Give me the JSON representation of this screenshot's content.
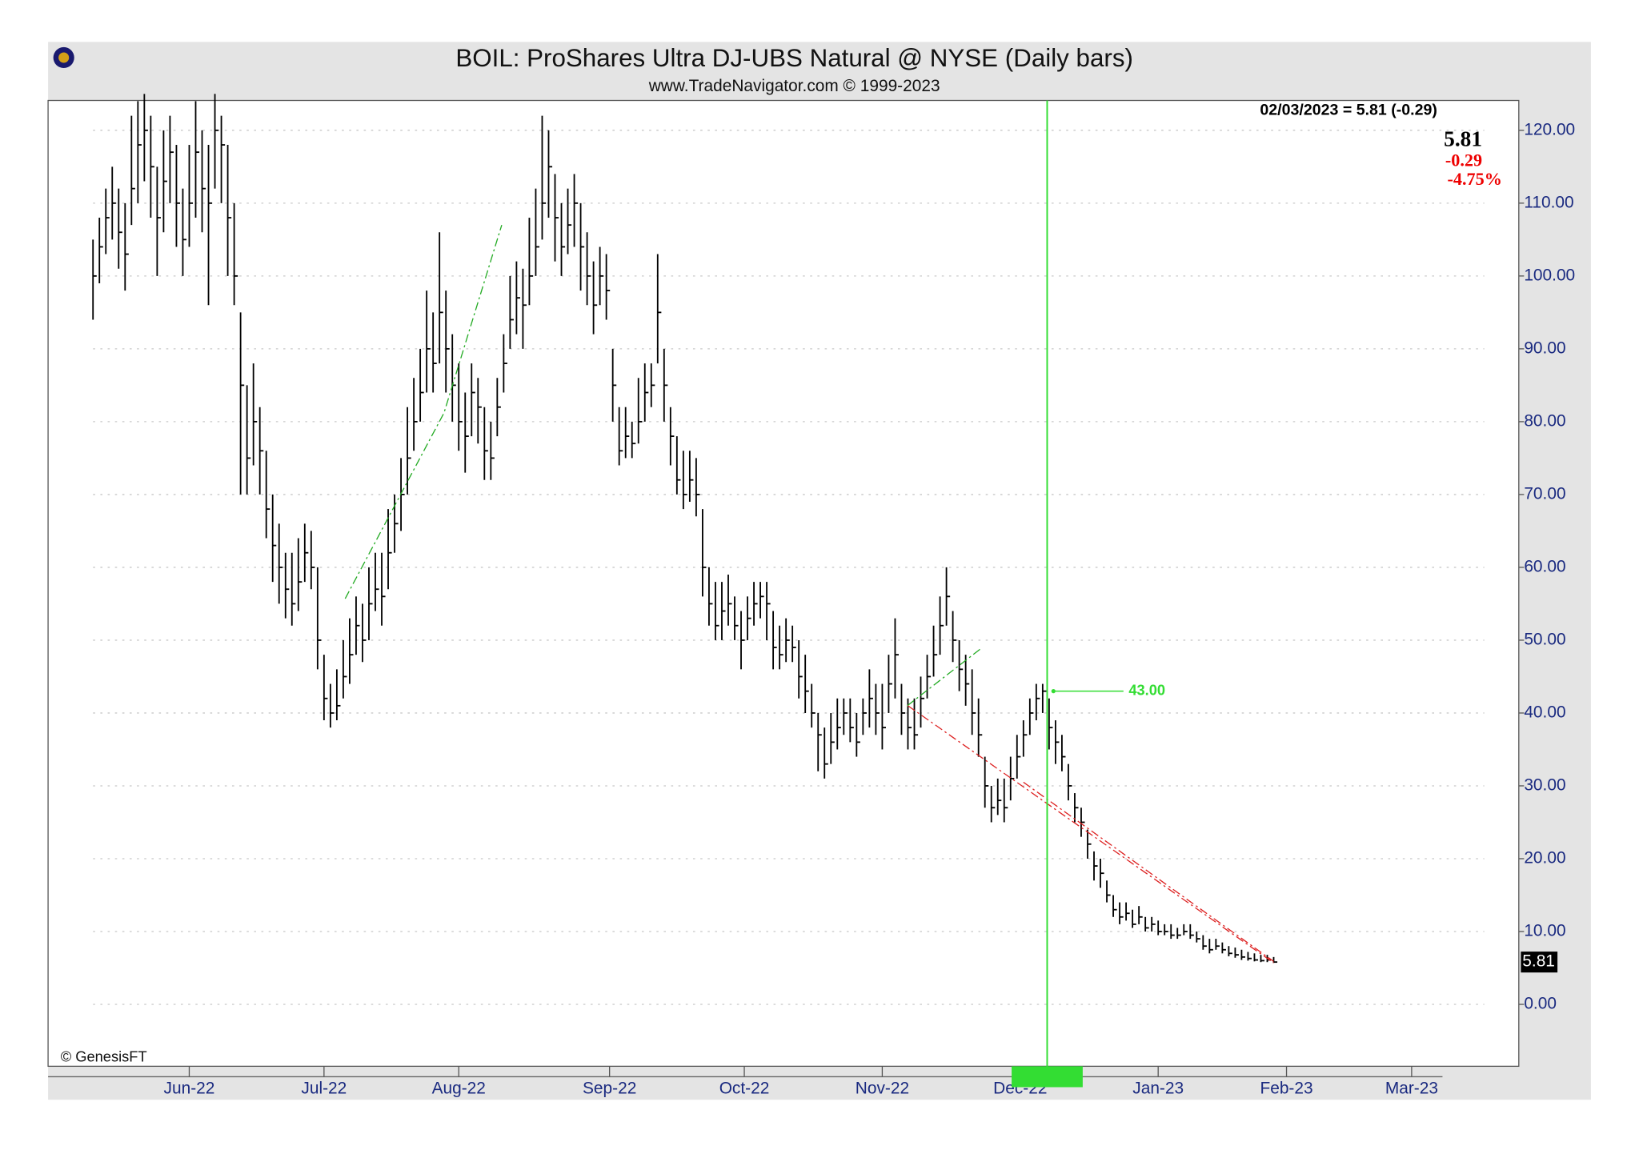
{
  "chart_data": {
    "type": "ohlc",
    "title": "BOIL:  ProShares Ultra DJ-UBS Natural @ NYSE  (Daily bars)",
    "subtitle": "www.TradeNavigator.com © 1999-2023",
    "quote_header": "02/03/2023 = 5.81 (-0.29)",
    "quote": {
      "last": "5.81",
      "change": "-0.29",
      "change_pct": "-4.75%"
    },
    "last_price_tag": 5.81,
    "copyright": "© GenesisFT",
    "color": "#000000",
    "high": [
      105,
      108,
      112,
      115,
      112,
      110,
      122,
      124,
      125,
      122,
      115,
      120,
      122,
      118,
      112,
      118,
      124,
      120,
      118,
      125,
      122,
      118,
      110,
      95,
      85,
      88,
      82,
      76,
      70,
      66,
      62,
      62,
      64,
      66,
      65,
      60,
      48,
      44,
      46,
      50,
      53,
      56,
      55,
      60,
      62,
      62,
      68,
      70,
      75,
      82,
      86,
      90,
      98,
      95,
      106,
      98,
      92,
      88,
      84,
      88,
      86,
      82,
      80,
      86,
      92,
      100,
      102,
      101,
      108,
      112,
      122,
      120,
      114,
      110,
      112,
      114,
      110,
      106,
      102,
      104,
      103,
      90,
      82,
      82,
      80,
      86,
      88,
      88,
      103,
      90,
      82,
      78,
      76,
      76,
      75,
      68,
      60,
      58,
      58,
      59,
      56,
      54,
      56,
      58,
      58,
      58,
      54,
      52,
      53,
      52,
      50,
      48,
      44,
      40,
      38,
      40,
      42,
      42,
      42,
      40,
      42,
      46,
      44,
      44,
      48,
      53,
      44,
      42,
      42,
      45,
      48,
      52,
      56,
      60,
      54,
      50,
      48,
      46,
      42,
      34,
      30,
      31,
      31,
      34,
      37,
      39,
      42,
      44,
      44,
      42,
      39,
      37,
      33,
      29,
      27,
      24,
      21,
      20,
      17,
      15,
      14,
      14,
      13,
      13.5,
      12,
      12,
      11.5,
      11,
      11,
      10.5,
      11,
      11,
      10,
      9.5,
      9,
      9,
      8.5,
      8,
      7.8,
      7.5,
      7.2,
      7,
      6.8,
      6.8,
      6.5
    ],
    "low": [
      94,
      99,
      103,
      105,
      101,
      98,
      107,
      110,
      113,
      108,
      100,
      106,
      110,
      104,
      100,
      104,
      108,
      106,
      96,
      112,
      110,
      100,
      96,
      70,
      70,
      74,
      70,
      64,
      58,
      55,
      53,
      52,
      54,
      58,
      57,
      46,
      39,
      38,
      39,
      42,
      44,
      48,
      47,
      50,
      54,
      52,
      57,
      62,
      65,
      70,
      76,
      80,
      84,
      84,
      88,
      84,
      80,
      76,
      73,
      78,
      77,
      72,
      72,
      78,
      84,
      90,
      92,
      90,
      96,
      100,
      105,
      108,
      102,
      100,
      103,
      104,
      98,
      96,
      92,
      96,
      94,
      80,
      74,
      75,
      75,
      77,
      80,
      82,
      88,
      80,
      74,
      70,
      68,
      69,
      67,
      56,
      52,
      50,
      50,
      52,
      50,
      46,
      50,
      52,
      53,
      50,
      46,
      46,
      47,
      47,
      42,
      40,
      38,
      32,
      31,
      33,
      35,
      37,
      36,
      34,
      37,
      38,
      37,
      35,
      40,
      42,
      37,
      35,
      35,
      38,
      42,
      45,
      48,
      52,
      47,
      43,
      41,
      37,
      34,
      27,
      25,
      26,
      25,
      28,
      31,
      34,
      37,
      39,
      40,
      35,
      33,
      32,
      28,
      25,
      23,
      20,
      17,
      16,
      14,
      12,
      11,
      11.5,
      10.5,
      11,
      10,
      10,
      9.5,
      9.5,
      9,
      9,
      9.5,
      9,
      8.5,
      7.5,
      7,
      7.5,
      7,
      6.6,
      6.4,
      6.1,
      6,
      5.9,
      5.8,
      5.8,
      5.7
    ],
    "close": [
      100,
      104,
      108,
      110,
      106,
      103,
      112,
      118,
      120,
      115,
      108,
      113,
      117,
      110,
      105,
      110,
      117,
      112,
      110,
      120,
      118,
      108,
      100,
      85,
      75,
      80,
      76,
      68,
      63,
      60,
      57,
      55,
      58,
      62,
      60,
      50,
      42,
      40,
      41,
      45,
      48,
      52,
      50,
      55,
      57,
      56,
      62,
      66,
      70,
      75,
      80,
      84,
      90,
      88,
      95,
      90,
      85,
      80,
      78,
      84,
      82,
      76,
      75,
      82,
      88,
      94,
      97,
      96,
      100,
      104,
      110,
      115,
      108,
      104,
      107,
      110,
      104,
      100,
      96,
      100,
      98,
      85,
      76,
      78,
      77,
      80,
      84,
      85,
      95,
      85,
      78,
      72,
      70,
      72,
      70,
      60,
      55,
      52,
      54,
      55,
      52,
      50,
      53,
      55,
      56,
      55,
      49,
      48,
      50,
      49,
      45,
      43,
      40,
      37,
      33,
      36,
      38,
      40,
      38,
      36,
      40,
      42,
      40,
      38,
      44,
      48,
      40,
      38,
      37,
      42,
      45,
      48,
      52,
      56,
      50,
      46,
      44,
      40,
      37,
      30,
      27,
      28,
      27,
      31,
      34,
      37,
      40,
      42,
      43,
      38,
      36,
      34,
      30,
      27,
      25,
      22,
      19,
      18,
      15,
      13,
      12,
      12.5,
      11,
      12,
      10.5,
      11,
      10,
      10,
      9.5,
      9.5,
      10,
      9.5,
      9,
      8,
      7.5,
      8,
      7.5,
      7,
      6.8,
      6.5,
      6.3,
      6.1,
      6.0,
      6.1,
      5.81
    ],
    "xlim": [
      -7,
      222.2
    ],
    "xticks": [
      {
        "value": 15,
        "label": "Jun-22"
      },
      {
        "value": 36,
        "label": "Jul-22"
      },
      {
        "value": 57,
        "label": "Aug-22"
      },
      {
        "value": 80.5,
        "label": "Sep-22"
      },
      {
        "value": 101.5,
        "label": "Oct-22"
      },
      {
        "value": 123,
        "label": "Nov-22"
      },
      {
        "value": 144.5,
        "label": "Dec-22"
      },
      {
        "value": 166,
        "label": "Jan-23"
      },
      {
        "value": 186,
        "label": "Feb-23"
      },
      {
        "value": 205.5,
        "label": "Mar-23"
      }
    ],
    "ylim": [
      -8.5,
      124.1
    ],
    "yticks": [
      {
        "value": 0,
        "label": "0.00"
      },
      {
        "value": 10,
        "label": "10.00"
      },
      {
        "value": 20,
        "label": "20.00"
      },
      {
        "value": 30,
        "label": "30.00"
      },
      {
        "value": 40,
        "label": "40.00"
      },
      {
        "value": 50,
        "label": "50.00"
      },
      {
        "value": 60,
        "label": "60.00"
      },
      {
        "value": 70,
        "label": "70.00"
      },
      {
        "value": 80,
        "label": "80.00"
      },
      {
        "value": 90,
        "label": "90.00"
      },
      {
        "value": 100,
        "label": "100.00"
      },
      {
        "value": 110,
        "label": "110.00"
      },
      {
        "value": 120,
        "label": "120.00"
      }
    ],
    "grid": true,
    "marker": {
      "x": 148.7,
      "value": 43,
      "label": "43.00",
      "color": "#33dd33"
    },
    "trendlines": [
      {
        "color": "#22aa22",
        "x": [
          39.3,
          54.7,
          63.7
        ],
        "y": [
          55.7,
          81.2,
          107
        ]
      },
      {
        "color": "#22aa22",
        "x": [
          126.9,
          138.6
        ],
        "y": [
          41,
          49
        ]
      },
      {
        "color": "#dd2222",
        "x": [
          127,
          184
        ],
        "y": [
          41,
          5.7
        ]
      },
      {
        "color": "#dd2222",
        "x": [
          145,
          184
        ],
        "y": [
          30.5,
          5.9
        ]
      }
    ]
  }
}
